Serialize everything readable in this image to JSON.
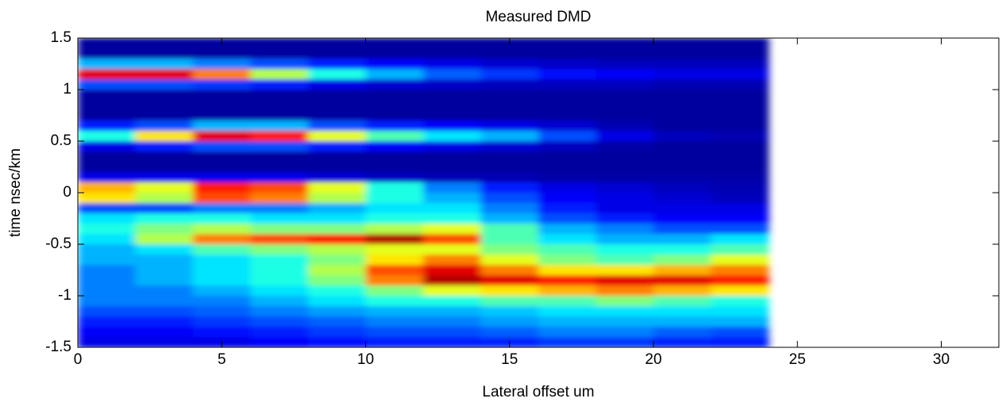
{
  "chart_data": {
    "type": "heatmap",
    "title": "Measured DMD",
    "xlabel": "Lateral offset um",
    "ylabel": "time nsec/km",
    "xlim": [
      0,
      32
    ],
    "xticks": [
      0,
      5,
      10,
      15,
      20,
      25,
      30
    ],
    "ylim": [
      -1.5,
      1.5
    ],
    "yticks": [
      -1.5,
      -1,
      -0.5,
      0,
      0.5,
      1,
      1.5
    ],
    "colormap": "jet",
    "clim": [
      0,
      1
    ],
    "x": [
      1,
      3,
      5,
      7,
      9,
      11,
      13,
      15,
      17,
      19,
      21,
      23
    ],
    "y": [
      1.45,
      1.35,
      1.25,
      1.15,
      1.05,
      0.95,
      0.85,
      0.75,
      0.65,
      0.55,
      0.45,
      0.35,
      0.25,
      0.15,
      0.05,
      -0.05,
      -0.15,
      -0.25,
      -0.35,
      -0.45,
      -0.55,
      -0.65,
      -0.75,
      -0.85,
      -0.95,
      -1.05,
      -1.15,
      -1.25,
      -1.35,
      -1.45
    ],
    "z": [
      [
        0.03,
        0.03,
        0.03,
        0.03,
        0.03,
        0.03,
        0.03,
        0.03,
        0.03,
        0.03,
        0.03,
        0.03
      ],
      [
        0.03,
        0.03,
        0.03,
        0.03,
        0.03,
        0.03,
        0.03,
        0.03,
        0.03,
        0.03,
        0.03,
        0.03
      ],
      [
        0.3,
        0.3,
        0.25,
        0.2,
        0.15,
        0.12,
        0.1,
        0.08,
        0.07,
        0.06,
        0.06,
        0.06
      ],
      [
        0.9,
        0.9,
        0.75,
        0.55,
        0.4,
        0.3,
        0.22,
        0.18,
        0.14,
        0.12,
        0.1,
        0.1
      ],
      [
        0.2,
        0.2,
        0.18,
        0.15,
        0.1,
        0.08,
        0.07,
        0.06,
        0.06,
        0.06,
        0.05,
        0.05
      ],
      [
        0.03,
        0.03,
        0.03,
        0.03,
        0.03,
        0.03,
        0.03,
        0.03,
        0.03,
        0.03,
        0.03,
        0.03
      ],
      [
        0.03,
        0.03,
        0.03,
        0.03,
        0.03,
        0.03,
        0.03,
        0.03,
        0.03,
        0.03,
        0.03,
        0.03
      ],
      [
        0.03,
        0.03,
        0.03,
        0.03,
        0.03,
        0.03,
        0.03,
        0.03,
        0.03,
        0.03,
        0.03,
        0.03
      ],
      [
        0.15,
        0.2,
        0.3,
        0.3,
        0.2,
        0.15,
        0.12,
        0.1,
        0.08,
        0.05,
        0.03,
        0.03
      ],
      [
        0.4,
        0.65,
        0.9,
        0.85,
        0.6,
        0.45,
        0.35,
        0.3,
        0.2,
        0.1,
        0.06,
        0.05
      ],
      [
        0.1,
        0.15,
        0.2,
        0.2,
        0.15,
        0.12,
        0.1,
        0.08,
        0.06,
        0.04,
        0.03,
        0.03
      ],
      [
        0.03,
        0.03,
        0.03,
        0.03,
        0.03,
        0.03,
        0.03,
        0.03,
        0.03,
        0.03,
        0.03,
        0.03
      ],
      [
        0.03,
        0.03,
        0.03,
        0.03,
        0.03,
        0.03,
        0.03,
        0.03,
        0.03,
        0.03,
        0.03,
        0.03
      ],
      [
        0.1,
        0.1,
        0.1,
        0.1,
        0.08,
        0.06,
        0.05,
        0.05,
        0.04,
        0.04,
        0.04,
        0.04
      ],
      [
        0.7,
        0.6,
        0.85,
        0.8,
        0.6,
        0.4,
        0.25,
        0.15,
        0.1,
        0.08,
        0.06,
        0.05
      ],
      [
        0.65,
        0.55,
        0.8,
        0.75,
        0.55,
        0.4,
        0.3,
        0.2,
        0.12,
        0.1,
        0.08,
        0.06
      ],
      [
        0.2,
        0.2,
        0.25,
        0.25,
        0.3,
        0.35,
        0.35,
        0.25,
        0.15,
        0.1,
        0.1,
        0.1
      ],
      [
        0.35,
        0.4,
        0.4,
        0.35,
        0.35,
        0.4,
        0.4,
        0.3,
        0.2,
        0.15,
        0.12,
        0.12
      ],
      [
        0.4,
        0.5,
        0.55,
        0.5,
        0.5,
        0.55,
        0.6,
        0.45,
        0.3,
        0.25,
        0.2,
        0.2
      ],
      [
        0.35,
        0.55,
        0.75,
        0.8,
        0.85,
        0.95,
        0.8,
        0.45,
        0.35,
        0.3,
        0.3,
        0.35
      ],
      [
        0.3,
        0.35,
        0.45,
        0.5,
        0.55,
        0.6,
        0.6,
        0.5,
        0.45,
        0.4,
        0.4,
        0.45
      ],
      [
        0.3,
        0.3,
        0.35,
        0.4,
        0.5,
        0.65,
        0.75,
        0.6,
        0.5,
        0.45,
        0.5,
        0.6
      ],
      [
        0.25,
        0.3,
        0.35,
        0.4,
        0.55,
        0.8,
        0.9,
        0.75,
        0.65,
        0.65,
        0.7,
        0.75
      ],
      [
        0.25,
        0.3,
        0.35,
        0.4,
        0.5,
        0.75,
        0.95,
        0.9,
        0.85,
        0.9,
        0.9,
        0.85
      ],
      [
        0.25,
        0.25,
        0.3,
        0.35,
        0.4,
        0.5,
        0.6,
        0.65,
        0.7,
        0.75,
        0.7,
        0.65
      ],
      [
        0.25,
        0.25,
        0.25,
        0.3,
        0.35,
        0.4,
        0.4,
        0.45,
        0.45,
        0.5,
        0.45,
        0.4
      ],
      [
        0.2,
        0.2,
        0.22,
        0.25,
        0.28,
        0.3,
        0.3,
        0.32,
        0.35,
        0.35,
        0.35,
        0.35
      ],
      [
        0.15,
        0.15,
        0.18,
        0.2,
        0.22,
        0.25,
        0.25,
        0.28,
        0.3,
        0.3,
        0.3,
        0.3
      ],
      [
        0.12,
        0.12,
        0.14,
        0.15,
        0.18,
        0.2,
        0.2,
        0.22,
        0.25,
        0.25,
        0.22,
        0.2
      ],
      [
        0.1,
        0.1,
        0.1,
        0.12,
        0.14,
        0.15,
        0.15,
        0.16,
        0.18,
        0.18,
        0.16,
        0.15
      ]
    ]
  }
}
